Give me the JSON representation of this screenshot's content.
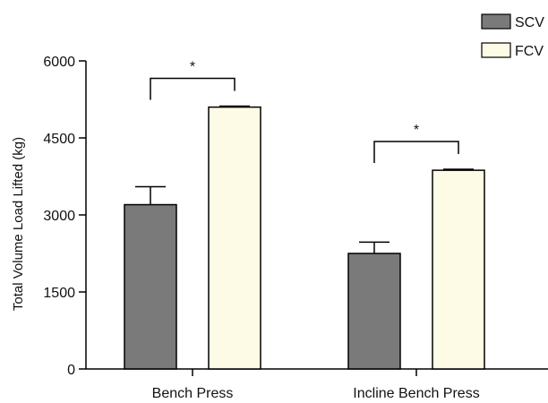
{
  "chart_data": {
    "type": "bar",
    "title": "",
    "xlabel": "",
    "ylabel": "Total Volume Load Lifted (kg)",
    "ylim": [
      0,
      6000
    ],
    "yticks": [
      0,
      1500,
      3000,
      4500,
      6000
    ],
    "categories": [
      "Bench Press",
      "Incline Bench Press"
    ],
    "series": [
      {
        "name": "SCV",
        "color": "#7a7a7a",
        "values": [
          3200,
          2250
        ],
        "errors": [
          350,
          220
        ]
      },
      {
        "name": "FCV",
        "color": "#fdfbe6",
        "values": [
          5100,
          3870
        ],
        "errors": [
          20,
          20
        ]
      }
    ],
    "significance": [
      {
        "category": "Bench Press",
        "label": "*"
      },
      {
        "category": "Incline Bench Press",
        "label": "*"
      }
    ],
    "legend": {
      "placement": "top-right"
    },
    "grid": false
  }
}
